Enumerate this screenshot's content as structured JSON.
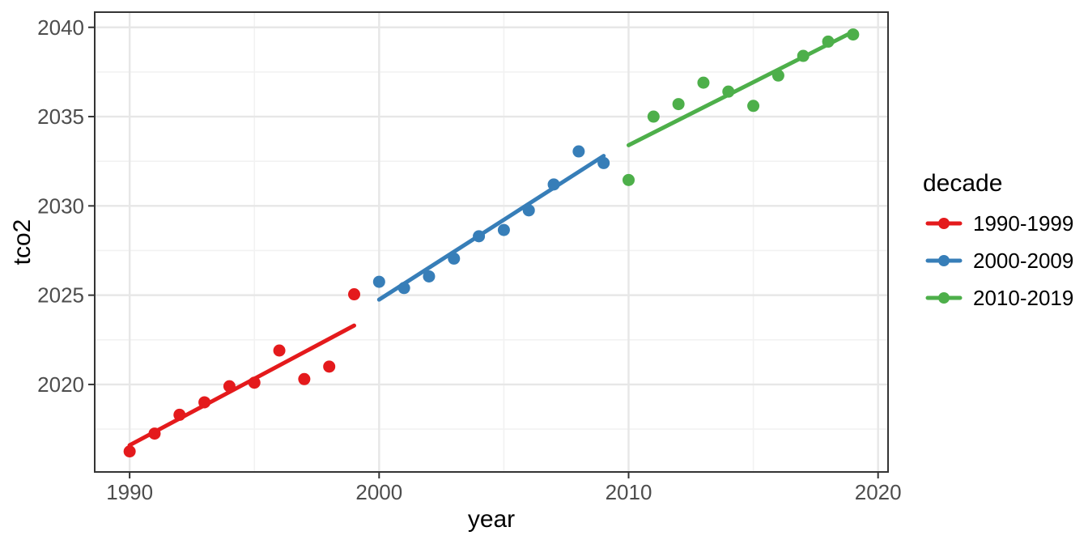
{
  "chart_data": {
    "type": "scatter",
    "title": "",
    "xlabel": "year",
    "ylabel": "tco2",
    "xlim": [
      1988.6,
      2020.4
    ],
    "ylim": [
      2015.1,
      2040.85
    ],
    "x_major_ticks": [
      1990,
      2000,
      2010,
      2020
    ],
    "x_minor_ticks": [
      1995,
      2005,
      2015
    ],
    "y_major_ticks": [
      2020,
      2025,
      2030,
      2035,
      2040
    ],
    "y_minor_ticks": [
      2017.5,
      2022.5,
      2027.5,
      2032.5,
      2037.5
    ],
    "grid": "major+minor",
    "legend_position": "right",
    "legend_title": "decade",
    "series": [
      {
        "name": "1990-1999",
        "color": "#E41A1C",
        "x": [
          1990,
          1991,
          1992,
          1993,
          1994,
          1995,
          1996,
          1997,
          1998,
          1999
        ],
        "y": [
          2016.25,
          2017.25,
          2018.3,
          2019.0,
          2019.9,
          2020.1,
          2021.9,
          2020.3,
          2021.0,
          2025.05
        ],
        "trend": {
          "x": [
            1990,
            1999
          ],
          "y": [
            2016.6,
            2023.3
          ]
        }
      },
      {
        "name": "2000-2009",
        "color": "#377EB8",
        "x": [
          2000,
          2001,
          2002,
          2003,
          2004,
          2005,
          2006,
          2007,
          2008,
          2009
        ],
        "y": [
          2025.75,
          2025.4,
          2026.05,
          2027.05,
          2028.3,
          2028.65,
          2029.75,
          2031.2,
          2033.05,
          2032.4
        ],
        "trend": {
          "x": [
            2000,
            2009
          ],
          "y": [
            2024.75,
            2032.8
          ]
        }
      },
      {
        "name": "2010-2019",
        "color": "#4DAF4A",
        "x": [
          2010,
          2011,
          2012,
          2013,
          2014,
          2015,
          2016,
          2017,
          2018,
          2019
        ],
        "y": [
          2031.45,
          2035.0,
          2035.7,
          2036.9,
          2036.4,
          2035.6,
          2037.3,
          2038.4,
          2039.2,
          2039.6
        ],
        "trend": {
          "x": [
            2010,
            2019
          ],
          "y": [
            2033.4,
            2039.75
          ]
        }
      }
    ],
    "theme": {
      "panel_background": "#FFFFFF",
      "panel_border_color": "#343434",
      "grid_major_color": "#E7E7E7",
      "grid_minor_color": "#F2F2F2",
      "tick_color": "#343434",
      "tick_label_color": "#4D4D4D",
      "axis_title_color": "#000000",
      "legend_text_color": "#000000"
    }
  }
}
